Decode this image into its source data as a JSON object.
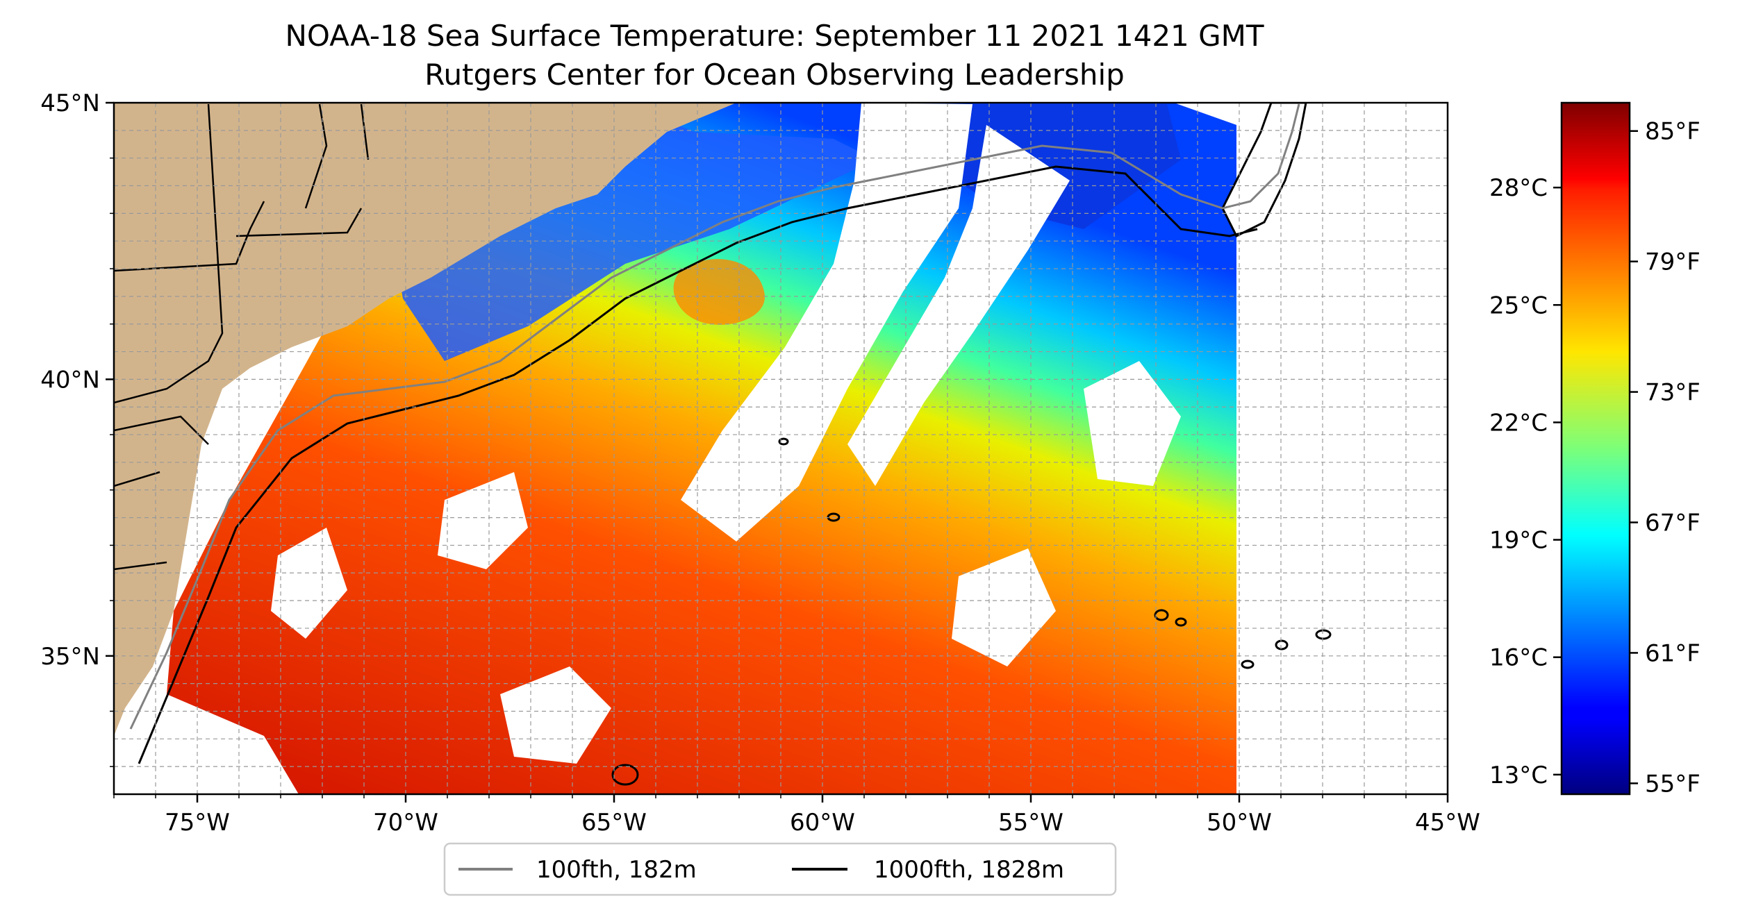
{
  "title": {
    "line1": "NOAA-18 Sea Surface Temperature: September 11 2021 1421 GMT",
    "line2": "Rutgers Center for Ocean Observing Leadership"
  },
  "map": {
    "lon_range": [
      -77,
      -45
    ],
    "lat_range": [
      32.5,
      45
    ],
    "lon_ticks": [
      {
        "value": -75,
        "label": "75°W"
      },
      {
        "value": -70,
        "label": "70°W"
      },
      {
        "value": -65,
        "label": "65°W"
      },
      {
        "value": -60,
        "label": "60°W"
      },
      {
        "value": -55,
        "label": "55°W"
      },
      {
        "value": -50,
        "label": "50°W"
      },
      {
        "value": -45,
        "label": "45°W"
      }
    ],
    "lat_ticks": [
      {
        "value": 35,
        "label": "35°N"
      },
      {
        "value": 40,
        "label": "40°N"
      },
      {
        "value": 45,
        "label": "45°N"
      }
    ],
    "grid": true,
    "land_color": "#d2b48c"
  },
  "legend": {
    "placement": "bottom-center",
    "items": [
      {
        "label": "100fth, 182m",
        "color": "#808080"
      },
      {
        "label": "1000fth, 1828m",
        "color": "#000000"
      }
    ]
  },
  "colorbar": {
    "colormap": "jet",
    "f_range": [
      54.5,
      86.3
    ],
    "fahrenheit_ticks": [
      {
        "value": 55,
        "label": "55°F"
      },
      {
        "value": 61,
        "label": "61°F"
      },
      {
        "value": 67,
        "label": "67°F"
      },
      {
        "value": 73,
        "label": "73°F"
      },
      {
        "value": 79,
        "label": "79°F"
      },
      {
        "value": 85,
        "label": "85°F"
      }
    ],
    "celsius_ticks": [
      {
        "value": 13,
        "label": "13°C"
      },
      {
        "value": 16,
        "label": "16°C"
      },
      {
        "value": 19,
        "label": "19°C"
      },
      {
        "value": 22,
        "label": "22°C"
      },
      {
        "value": 25,
        "label": "25°C"
      },
      {
        "value": 28,
        "label": "28°C"
      }
    ]
  }
}
